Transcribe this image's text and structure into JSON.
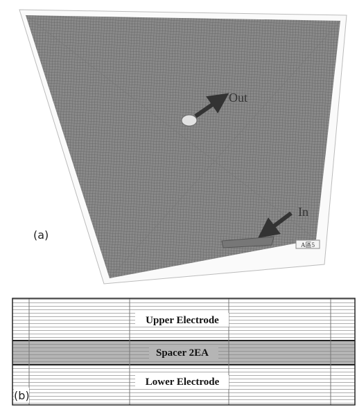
{
  "panel_a": {
    "label": "(a)",
    "outlet": "Out",
    "inlet": "In",
    "tag": "A區5"
  },
  "panel_b": {
    "label": "(b)",
    "layers": [
      "Upper Electrode",
      "Spacer 2EA",
      "Lower Electrode"
    ]
  }
}
